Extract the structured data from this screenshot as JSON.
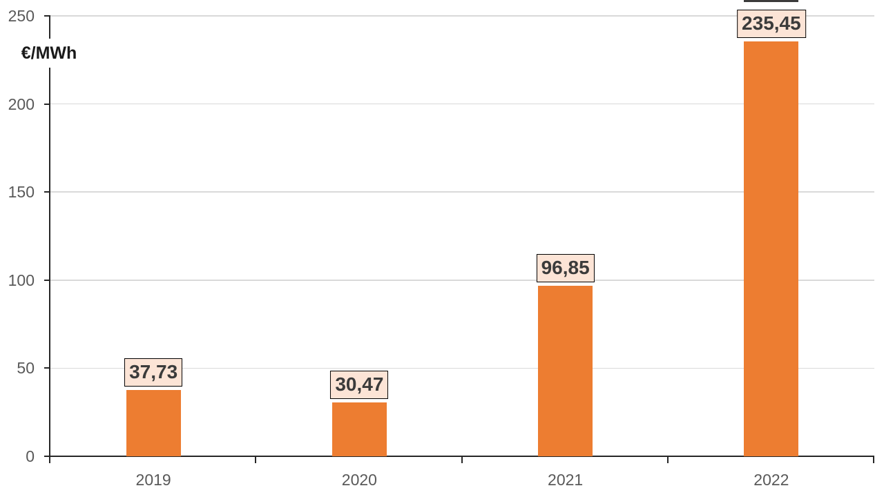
{
  "chart_data": {
    "type": "bar",
    "title": "",
    "ylabel": "€/MWh",
    "xlabel": "",
    "categories": [
      "2019",
      "2020",
      "2021",
      "2022"
    ],
    "values": [
      37.73,
      30.47,
      96.85,
      235.45
    ],
    "value_labels": [
      "37,73",
      "30,47",
      "96,85",
      "235,45"
    ],
    "ylim": [
      0,
      250
    ],
    "yticks": [
      0,
      50,
      100,
      150,
      200,
      250
    ],
    "ytick_labels": [
      "0",
      "50",
      "100",
      "150",
      "200",
      "250"
    ],
    "grid": true,
    "legend_position": "none",
    "colors": {
      "bar": "#ed7d31",
      "label_box_fill": "#fce4d6",
      "label_box_border": "#000000",
      "label_text": "#3b3b3b",
      "axis_line": "#262626",
      "gridline": "#d9d9d9",
      "tick_label": "#595959",
      "axis_title": "#1a1a1a"
    }
  }
}
